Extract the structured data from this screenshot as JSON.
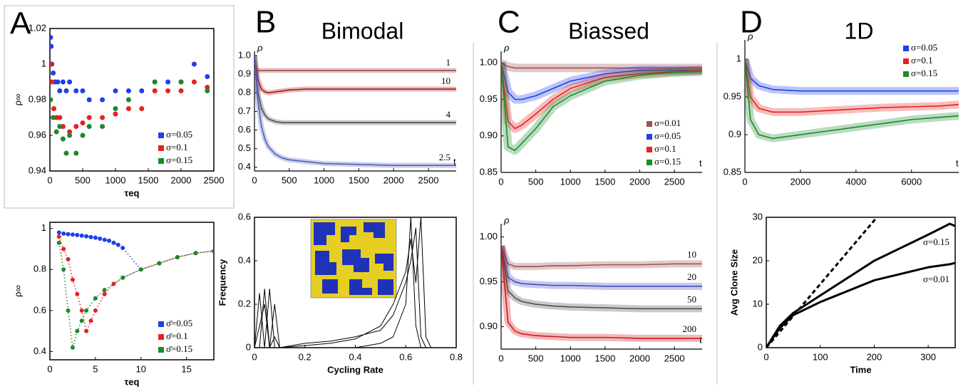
{
  "panel_letters": [
    "A",
    "B",
    "C",
    "D"
  ],
  "chart_data": [
    {
      "type": "scatter",
      "ylabel": "ρ∞",
      "xlabel": "τeq",
      "xlim": [
        0,
        2500
      ],
      "ylim": [
        0.94,
        1.02
      ],
      "xticks": [
        0,
        500,
        1000,
        1500,
        2000,
        2500
      ],
      "yticks": [
        0.94,
        0.96,
        0.98,
        1,
        1.02
      ],
      "legend": "lower right",
      "series": [
        {
          "name": "σ=0.05",
          "color": "#1f3fe8",
          "x": [
            10,
            20,
            30,
            50,
            80,
            120,
            150,
            200,
            250,
            300,
            400,
            500,
            600,
            800,
            1000,
            1200,
            1400,
            1600,
            1800,
            2000,
            2200,
            2400
          ],
          "values": [
            1.015,
            1.01,
            1.0,
            0.995,
            0.99,
            0.99,
            0.985,
            0.99,
            0.985,
            0.99,
            0.985,
            0.985,
            0.98,
            0.98,
            0.985,
            0.985,
            0.985,
            0.99,
            0.99,
            0.99,
            1.0,
            0.993
          ]
        },
        {
          "name": "σ=0.1",
          "color": "#e82020",
          "x": [
            10,
            30,
            60,
            100,
            150,
            200,
            300,
            400,
            500,
            600,
            800,
            1000,
            1200,
            1400,
            1600,
            1800,
            2000,
            2200,
            2400
          ],
          "values": [
            1.0,
            0.99,
            0.975,
            0.97,
            0.97,
            0.965,
            0.962,
            0.965,
            0.967,
            0.97,
            0.97,
            0.972,
            0.975,
            0.975,
            0.985,
            0.985,
            0.985,
            0.99,
            0.987
          ]
        },
        {
          "name": "σ=0.15",
          "color": "#1a8a2a",
          "x": [
            10,
            50,
            100,
            150,
            200,
            250,
            300,
            400,
            500,
            600,
            800,
            1000,
            1200,
            1600,
            2000,
            2400
          ],
          "values": [
            0.98,
            0.97,
            0.962,
            0.965,
            0.958,
            0.95,
            0.96,
            0.95,
            0.96,
            0.965,
            0.965,
            0.975,
            0.98,
            0.99,
            0.99,
            0.985
          ]
        }
      ]
    },
    {
      "type": "scatter",
      "connect": "dotted",
      "ylabel": "ρ∞",
      "xlabel": "τeq",
      "xlim": [
        0,
        18
      ],
      "ylim": [
        0.36,
        1.03
      ],
      "xticks": [
        0,
        5,
        10,
        15
      ],
      "yticks": [
        0.4,
        0.6,
        0.8,
        1
      ],
      "legend": "lower right",
      "series": [
        {
          "name": "σ̄=0.05",
          "color": "#1f3fe8",
          "x": [
            1,
            1.5,
            2,
            2.5,
            3,
            3.5,
            4,
            4.5,
            5,
            5.5,
            6,
            6.5,
            7,
            7.5,
            8,
            10,
            12,
            14,
            16,
            18
          ],
          "values": [
            0.98,
            0.975,
            0.972,
            0.97,
            0.968,
            0.965,
            0.962,
            0.958,
            0.955,
            0.95,
            0.945,
            0.94,
            0.93,
            0.92,
            0.905,
            0.8,
            0.83,
            0.86,
            0.88,
            0.89
          ]
        },
        {
          "name": "σ̄=0.1",
          "color": "#e82020",
          "x": [
            1,
            1.5,
            2,
            2.5,
            3,
            3.5,
            4,
            4.5,
            5,
            6,
            7,
            8,
            10,
            12,
            14,
            16,
            18
          ],
          "values": [
            0.96,
            0.9,
            0.85,
            0.75,
            0.68,
            0.6,
            0.5,
            0.55,
            0.6,
            0.68,
            0.73,
            0.76,
            0.8,
            0.83,
            0.86,
            0.88,
            0.89
          ]
        },
        {
          "name": "σ̄=0.15",
          "color": "#1a8a2a",
          "x": [
            1,
            1.5,
            2,
            2.5,
            3,
            3.5,
            4,
            5,
            6,
            8,
            10,
            12,
            14,
            16,
            18
          ],
          "values": [
            0.93,
            0.8,
            0.6,
            0.42,
            0.5,
            0.55,
            0.6,
            0.66,
            0.7,
            0.76,
            0.8,
            0.83,
            0.86,
            0.88,
            0.89
          ]
        }
      ]
    },
    {
      "type": "line",
      "title": "Bimodal",
      "ylabel": "ρ",
      "xlabel": "t",
      "xlim": [
        0,
        2900
      ],
      "ylim": [
        0.38,
        1.0
      ],
      "xticks": [
        0,
        500,
        1000,
        1500,
        2000,
        2500
      ],
      "yticks": [
        0.4,
        0.5,
        0.6,
        0.7,
        0.8,
        0.9,
        {
          "value": 1,
          "label": "1.0"
        }
      ],
      "legend": "inline",
      "x": [
        0,
        50,
        100,
        150,
        200,
        300,
        400,
        500,
        750,
        1000,
        1500,
        2000,
        2500,
        2900
      ],
      "series": [
        {
          "name": "1",
          "color": "#a04848",
          "values": [
            0.92,
            0.92,
            0.92,
            0.92,
            0.92,
            0.92,
            0.92,
            0.92,
            0.92,
            0.92,
            0.92,
            0.92,
            0.92,
            0.92
          ]
        },
        {
          "name": "10",
          "color": "#b01818",
          "values": [
            1.0,
            0.87,
            0.82,
            0.805,
            0.8,
            0.805,
            0.81,
            0.815,
            0.82,
            0.82,
            0.82,
            0.82,
            0.82,
            0.82
          ]
        },
        {
          "name": "4",
          "color": "#505050",
          "values": [
            1.0,
            0.8,
            0.72,
            0.68,
            0.66,
            0.645,
            0.64,
            0.64,
            0.64,
            0.64,
            0.64,
            0.64,
            0.64,
            0.64
          ]
        },
        {
          "name": "2.5",
          "color": "#5060c0",
          "values": [
            1.0,
            0.75,
            0.62,
            0.55,
            0.51,
            0.47,
            0.45,
            0.44,
            0.43,
            0.42,
            0.415,
            0.41,
            0.41,
            0.41
          ]
        }
      ]
    },
    {
      "type": "line",
      "ylabel": "Frequency",
      "xlabel": "Cycling Rate",
      "xlim": [
        0,
        0.8
      ],
      "ylim": [
        0,
        0.6
      ],
      "xticks": [
        0,
        0.2,
        0.4,
        0.6,
        0.8
      ],
      "yticks": [
        0,
        0.2,
        0.4,
        0.6
      ],
      "color": "#000000",
      "x": [
        0,
        0.02,
        0.04,
        0.06,
        0.08,
        0.1,
        0.2,
        0.3,
        0.4,
        0.5,
        0.55,
        0.6,
        0.62,
        0.64,
        0.66,
        0.68,
        0.7,
        0.8
      ],
      "series": [
        {
          "values": [
            0,
            0.25,
            0,
            0.27,
            0,
            0,
            0,
            0,
            0,
            0.02,
            0.05,
            0.2,
            0.6,
            0.1,
            0,
            0,
            0,
            0
          ]
        },
        {
          "values": [
            0,
            0,
            0.27,
            0,
            0.2,
            0,
            0.02,
            0.03,
            0.05,
            0.08,
            0.15,
            0.3,
            0.4,
            0.55,
            0.05,
            0,
            0,
            0
          ]
        },
        {
          "values": [
            0,
            0.1,
            0.2,
            0,
            0.05,
            0,
            0.01,
            0.02,
            0.04,
            0.1,
            0.2,
            0.35,
            0.5,
            0.3,
            0.6,
            0.05,
            0,
            0
          ]
        }
      ]
    },
    {
      "type": "line",
      "title": "Biassed",
      "ylabel": "ρ",
      "xlabel": "t",
      "xlim": [
        0,
        2900
      ],
      "ylim": [
        0.85,
        1.01
      ],
      "xticks": [
        0,
        500,
        1000,
        1500,
        2000,
        2500
      ],
      "yticks": [
        0.85,
        {
          "value": 0.9,
          "label": "0.90"
        },
        0.95,
        {
          "value": 1,
          "label": "1.00"
        }
      ],
      "legend": "lower right",
      "x": [
        0,
        100,
        200,
        300,
        500,
        750,
        1000,
        1500,
        2000,
        2500,
        2900
      ],
      "series": [
        {
          "name": "σ=0.01",
          "color": "#a05050",
          "values": [
            1.0,
            0.995,
            0.993,
            0.993,
            0.993,
            0.993,
            0.993,
            0.993,
            0.993,
            0.993,
            0.993
          ]
        },
        {
          "name": "σ=0.05",
          "color": "#1f3fe8",
          "values": [
            1.0,
            0.96,
            0.95,
            0.95,
            0.955,
            0.965,
            0.975,
            0.985,
            0.99,
            0.99,
            0.99
          ]
        },
        {
          "name": "σ=0.1",
          "color": "#e82020",
          "values": [
            1.0,
            0.92,
            0.91,
            0.915,
            0.93,
            0.95,
            0.965,
            0.98,
            0.985,
            0.988,
            0.99
          ]
        },
        {
          "name": "σ=0.15",
          "color": "#1a8a2a",
          "values": [
            1.0,
            0.885,
            0.88,
            0.89,
            0.91,
            0.94,
            0.955,
            0.975,
            0.983,
            0.987,
            0.988
          ]
        }
      ]
    },
    {
      "type": "line",
      "ylabel": "ρ",
      "xlabel": "t",
      "xlim": [
        0,
        2900
      ],
      "ylim": [
        0.875,
        1.01
      ],
      "xticks": [
        0,
        500,
        1000,
        1500,
        2000,
        2500
      ],
      "yticks": [
        {
          "value": 0.9,
          "label": "0.90"
        },
        0.95,
        {
          "value": 1,
          "label": "1.00"
        }
      ],
      "legend": "inline",
      "x": [
        0,
        100,
        200,
        300,
        500,
        750,
        1000,
        1500,
        2000,
        2500,
        2900
      ],
      "series": [
        {
          "name": "10",
          "color": "#a05050",
          "values": [
            0.99,
            0.97,
            0.967,
            0.967,
            0.967,
            0.968,
            0.968,
            0.969,
            0.969,
            0.97,
            0.97
          ]
        },
        {
          "name": "20",
          "color": "#4050c0",
          "values": [
            0.99,
            0.955,
            0.95,
            0.948,
            0.947,
            0.946,
            0.946,
            0.945,
            0.945,
            0.945,
            0.945
          ]
        },
        {
          "name": "50",
          "color": "#505050",
          "values": [
            0.99,
            0.94,
            0.932,
            0.928,
            0.925,
            0.923,
            0.922,
            0.921,
            0.92,
            0.92,
            0.92
          ]
        },
        {
          "name": "200",
          "color": "#d01818",
          "values": [
            0.99,
            0.905,
            0.895,
            0.892,
            0.89,
            0.889,
            0.888,
            0.888,
            0.887,
            0.887,
            0.887
          ]
        }
      ]
    },
    {
      "type": "line",
      "title": "1D",
      "ylabel": "ρ",
      "xlabel": "t",
      "xlim": [
        0,
        7700
      ],
      "ylim": [
        0.85,
        1.02
      ],
      "xticks": [
        0,
        2000,
        4000,
        6000
      ],
      "yticks": [
        0.85,
        0.9,
        0.95,
        1
      ],
      "legend": "upper right",
      "x": [
        0,
        200,
        500,
        1000,
        2000,
        3000,
        4000,
        5000,
        6000,
        7000,
        7700
      ],
      "series": [
        {
          "name": "σ=0.05",
          "color": "#1f3fe8",
          "values": [
            1.0,
            0.975,
            0.965,
            0.96,
            0.958,
            0.958,
            0.958,
            0.958,
            0.958,
            0.958,
            0.958
          ]
        },
        {
          "name": "σ=0.1",
          "color": "#e82020",
          "values": [
            1.0,
            0.95,
            0.935,
            0.93,
            0.93,
            0.932,
            0.934,
            0.936,
            0.937,
            0.938,
            0.94
          ]
        },
        {
          "name": "σ=0.15",
          "color": "#1a8a2a",
          "values": [
            1.0,
            0.92,
            0.9,
            0.895,
            0.9,
            0.905,
            0.91,
            0.915,
            0.92,
            0.923,
            0.925
          ]
        }
      ]
    },
    {
      "type": "line",
      "ylabel": "Avg Clone Size",
      "xlabel": "Time",
      "xlim": [
        0,
        350
      ],
      "ylim": [
        0,
        30
      ],
      "xticks": [
        0,
        100,
        200,
        300
      ],
      "yticks": [
        0,
        10,
        20,
        30
      ],
      "legend": "inline",
      "color": "#000000",
      "x": [
        0,
        25,
        50,
        100,
        150,
        200,
        250,
        300,
        340,
        350
      ],
      "series": [
        {
          "name": "σ=0.15",
          "values": [
            0,
            5,
            8,
            12,
            16,
            20,
            23,
            26,
            28.5,
            28
          ]
        },
        {
          "name": "σ=0.01",
          "values": [
            0,
            4.5,
            7.5,
            10.5,
            13,
            15.5,
            17,
            18.5,
            19.2,
            19.5
          ]
        },
        {
          "dashed": true,
          "x": [
            0,
            205
          ],
          "values": [
            0,
            30
          ]
        }
      ]
    }
  ]
}
